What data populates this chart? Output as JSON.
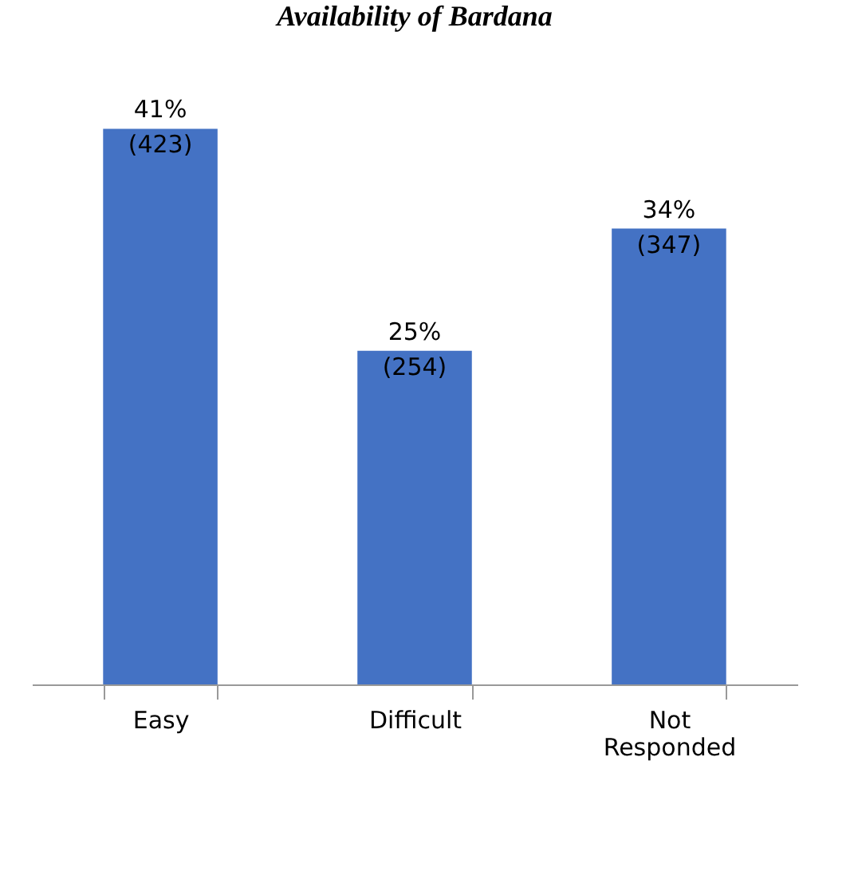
{
  "chart_data": {
    "type": "bar",
    "title": "Availability of Bardana",
    "categories": [
      "Easy",
      "Difficult",
      "Not Responded"
    ],
    "values": [
      423,
      254,
      347
    ],
    "value_labels": [
      "41%\n(423)",
      "25%\n(254)",
      "34%\n(347)"
    ],
    "color": "#4472c4"
  }
}
